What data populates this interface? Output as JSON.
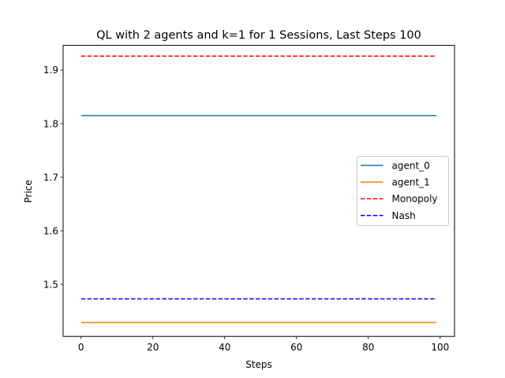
{
  "chart_data": {
    "type": "line",
    "title": "QL with 2 agents and k=1 for 1 Sessions, Last Steps 100",
    "xlabel": "Steps",
    "ylabel": "Price",
    "xlim": [
      -5,
      104
    ],
    "ylim": [
      1.403,
      1.946
    ],
    "xticks": [
      0,
      20,
      40,
      60,
      80,
      100
    ],
    "yticks": [
      1.5,
      1.6,
      1.7,
      1.8,
      1.9
    ],
    "x_range": [
      0,
      99
    ],
    "grid": false,
    "legend_position": "center-right",
    "series": [
      {
        "name": "agent_0",
        "color": "#1f77b4",
        "dash": "solid",
        "values": [
          1.815
        ]
      },
      {
        "name": "agent_1",
        "color": "#ff7f0e",
        "dash": "solid",
        "values": [
          1.429
        ]
      },
      {
        "name": "Monopoly",
        "color": "#ff0000",
        "dash": "dashed",
        "values": [
          1.926
        ]
      },
      {
        "name": "Nash",
        "color": "#0000ff",
        "dash": "dashed",
        "values": [
          1.473
        ]
      }
    ]
  }
}
